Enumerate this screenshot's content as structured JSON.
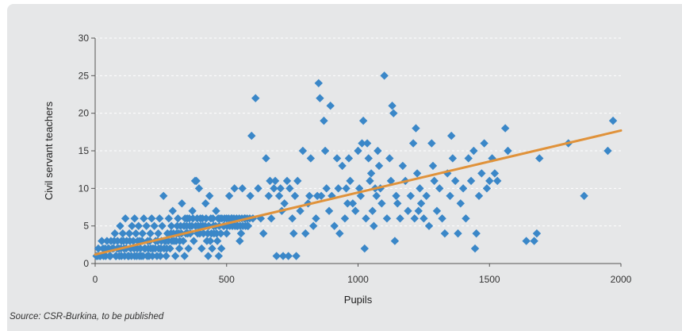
{
  "chart_data": {
    "type": "scatter",
    "title": "",
    "xlabel": "Pupils",
    "ylabel": "Civil servant teachers",
    "xlim": [
      0,
      2000
    ],
    "ylim": [
      0,
      30
    ],
    "xticks": [
      "0",
      "500",
      "1000",
      "1500",
      "2000"
    ],
    "yticks": [
      "0",
      "5",
      "10",
      "15",
      "20",
      "25",
      "30"
    ],
    "grid": "horizontal-dashed",
    "colors": {
      "points": "#3a87c8",
      "trend": "#e0923a",
      "background": "#e6e7e8"
    },
    "trendline": {
      "x": [
        0,
        2000
      ],
      "y": [
        1.2,
        17.7
      ]
    },
    "series": [
      {
        "points": [
          [
            10,
            1
          ],
          [
            20,
            1
          ],
          [
            30,
            2
          ],
          [
            40,
            1
          ],
          [
            50,
            2
          ],
          [
            55,
            1
          ],
          [
            60,
            3
          ],
          [
            70,
            2
          ],
          [
            75,
            4
          ],
          [
            80,
            1
          ],
          [
            85,
            3
          ],
          [
            90,
            2
          ],
          [
            95,
            5
          ],
          [
            100,
            1
          ],
          [
            100,
            3
          ],
          [
            105,
            4
          ],
          [
            110,
            2
          ],
          [
            115,
            6
          ],
          [
            120,
            3
          ],
          [
            125,
            1
          ],
          [
            130,
            4
          ],
          [
            135,
            2
          ],
          [
            140,
            5
          ],
          [
            145,
            3
          ],
          [
            150,
            1
          ],
          [
            150,
            6
          ],
          [
            155,
            4
          ],
          [
            160,
            2
          ],
          [
            165,
            5
          ],
          [
            170,
            3
          ],
          [
            175,
            1
          ],
          [
            180,
            4
          ],
          [
            185,
            6
          ],
          [
            190,
            2
          ],
          [
            195,
            5
          ],
          [
            200,
            3
          ],
          [
            205,
            1
          ],
          [
            210,
            4
          ],
          [
            215,
            6
          ],
          [
            220,
            2
          ],
          [
            225,
            5
          ],
          [
            230,
            3
          ],
          [
            235,
            1
          ],
          [
            240,
            4
          ],
          [
            245,
            6
          ],
          [
            250,
            2
          ],
          [
            255,
            5
          ],
          [
            260,
            9
          ],
          [
            265,
            3
          ],
          [
            270,
            1
          ],
          [
            275,
            4
          ],
          [
            280,
            6
          ],
          [
            285,
            2
          ],
          [
            290,
            5
          ],
          [
            295,
            7
          ],
          [
            300,
            3
          ],
          [
            305,
            1
          ],
          [
            310,
            4
          ],
          [
            315,
            6
          ],
          [
            320,
            2
          ],
          [
            325,
            5
          ],
          [
            330,
            8
          ],
          [
            335,
            3
          ],
          [
            340,
            1
          ],
          [
            345,
            4
          ],
          [
            350,
            6
          ],
          [
            355,
            2
          ],
          [
            360,
            5
          ],
          [
            370,
            7
          ],
          [
            375,
            3
          ],
          [
            380,
            11
          ],
          [
            385,
            11
          ],
          [
            390,
            4
          ],
          [
            395,
            10
          ],
          [
            400,
            6
          ],
          [
            405,
            2
          ],
          [
            410,
            5
          ],
          [
            420,
            8
          ],
          [
            425,
            3
          ],
          [
            430,
            1
          ],
          [
            435,
            9
          ],
          [
            440,
            6
          ],
          [
            445,
            2
          ],
          [
            450,
            5
          ],
          [
            460,
            7
          ],
          [
            465,
            3
          ],
          [
            470,
            1
          ],
          [
            475,
            6
          ],
          [
            480,
            2
          ],
          [
            490,
            5
          ],
          [
            500,
            6
          ],
          [
            500,
            4
          ],
          [
            510,
            9
          ],
          [
            520,
            6
          ],
          [
            530,
            10
          ],
          [
            540,
            5
          ],
          [
            550,
            3
          ],
          [
            555,
            4
          ],
          [
            560,
            10
          ],
          [
            570,
            6
          ],
          [
            580,
            5
          ],
          [
            590,
            9
          ],
          [
            595,
            17
          ],
          [
            600,
            6
          ],
          [
            610,
            22
          ],
          [
            620,
            10
          ],
          [
            630,
            6
          ],
          [
            640,
            4
          ],
          [
            650,
            14
          ],
          [
            660,
            9
          ],
          [
            665,
            11
          ],
          [
            670,
            6
          ],
          [
            680,
            10
          ],
          [
            685,
            11
          ],
          [
            690,
            1
          ],
          [
            700,
            9
          ],
          [
            705,
            10
          ],
          [
            710,
            7
          ],
          [
            715,
            1
          ],
          [
            720,
            8
          ],
          [
            730,
            11
          ],
          [
            735,
            1
          ],
          [
            740,
            10
          ],
          [
            750,
            6
          ],
          [
            755,
            4
          ],
          [
            760,
            9
          ],
          [
            765,
            1
          ],
          [
            770,
            11
          ],
          [
            780,
            7
          ],
          [
            790,
            15
          ],
          [
            800,
            4
          ],
          [
            810,
            8
          ],
          [
            815,
            9
          ],
          [
            820,
            14
          ],
          [
            830,
            5
          ],
          [
            840,
            6
          ],
          [
            845,
            9
          ],
          [
            850,
            24
          ],
          [
            855,
            22
          ],
          [
            860,
            9
          ],
          [
            870,
            19
          ],
          [
            875,
            15
          ],
          [
            880,
            10
          ],
          [
            890,
            7
          ],
          [
            895,
            21
          ],
          [
            900,
            9
          ],
          [
            910,
            5
          ],
          [
            920,
            14
          ],
          [
            925,
            10
          ],
          [
            930,
            4
          ],
          [
            940,
            13
          ],
          [
            950,
            6
          ],
          [
            955,
            10
          ],
          [
            960,
            8
          ],
          [
            965,
            14
          ],
          [
            970,
            11
          ],
          [
            980,
            8
          ],
          [
            990,
            7
          ],
          [
            1000,
            15
          ],
          [
            1005,
            10
          ],
          [
            1010,
            9
          ],
          [
            1015,
            16
          ],
          [
            1020,
            19
          ],
          [
            1025,
            2
          ],
          [
            1030,
            6
          ],
          [
            1035,
            16
          ],
          [
            1040,
            14
          ],
          [
            1045,
            11
          ],
          [
            1050,
            12
          ],
          [
            1055,
            7
          ],
          [
            1060,
            5
          ],
          [
            1065,
            10
          ],
          [
            1070,
            9
          ],
          [
            1075,
            15
          ],
          [
            1080,
            13
          ],
          [
            1085,
            10
          ],
          [
            1090,
            8
          ],
          [
            1100,
            25
          ],
          [
            1110,
            6
          ],
          [
            1120,
            14
          ],
          [
            1125,
            11
          ],
          [
            1130,
            21
          ],
          [
            1135,
            20
          ],
          [
            1140,
            3
          ],
          [
            1145,
            9
          ],
          [
            1150,
            8
          ],
          [
            1160,
            6
          ],
          [
            1170,
            13
          ],
          [
            1180,
            11
          ],
          [
            1190,
            7
          ],
          [
            1200,
            9
          ],
          [
            1210,
            16
          ],
          [
            1215,
            6
          ],
          [
            1220,
            18
          ],
          [
            1225,
            12
          ],
          [
            1230,
            7
          ],
          [
            1235,
            10
          ],
          [
            1240,
            8
          ],
          [
            1250,
            6
          ],
          [
            1260,
            9
          ],
          [
            1270,
            5
          ],
          [
            1280,
            16
          ],
          [
            1285,
            13
          ],
          [
            1290,
            11
          ],
          [
            1300,
            7
          ],
          [
            1310,
            10
          ],
          [
            1320,
            6
          ],
          [
            1330,
            4
          ],
          [
            1340,
            12
          ],
          [
            1350,
            9
          ],
          [
            1355,
            17
          ],
          [
            1360,
            14
          ],
          [
            1370,
            11
          ],
          [
            1380,
            4
          ],
          [
            1390,
            8
          ],
          [
            1400,
            10
          ],
          [
            1410,
            6
          ],
          [
            1420,
            14
          ],
          [
            1430,
            11
          ],
          [
            1440,
            15
          ],
          [
            1445,
            2
          ],
          [
            1450,
            4
          ],
          [
            1460,
            9
          ],
          [
            1470,
            12
          ],
          [
            1480,
            16
          ],
          [
            1490,
            10
          ],
          [
            1500,
            11
          ],
          [
            1510,
            14
          ],
          [
            1520,
            12
          ],
          [
            1530,
            11
          ],
          [
            1560,
            18
          ],
          [
            1570,
            15
          ],
          [
            1640,
            3
          ],
          [
            1670,
            3
          ],
          [
            1680,
            4
          ],
          [
            1690,
            14
          ],
          [
            1800,
            16
          ],
          [
            1860,
            9
          ],
          [
            1950,
            15
          ],
          [
            1970,
            19
          ],
          [
            5,
            1
          ],
          [
            12,
            2
          ],
          [
            18,
            1
          ],
          [
            25,
            3
          ],
          [
            32,
            1
          ],
          [
            38,
            2
          ],
          [
            45,
            3
          ],
          [
            52,
            2
          ],
          [
            58,
            1
          ],
          [
            65,
            2
          ],
          [
            72,
            3
          ],
          [
            78,
            1
          ],
          [
            84,
            2
          ],
          [
            92,
            1
          ],
          [
            98,
            2
          ],
          [
            108,
            3
          ],
          [
            112,
            1
          ],
          [
            118,
            2
          ],
          [
            128,
            1
          ],
          [
            132,
            3
          ],
          [
            138,
            1
          ],
          [
            148,
            2
          ],
          [
            158,
            1
          ],
          [
            162,
            3
          ],
          [
            168,
            1
          ],
          [
            172,
            2
          ],
          [
            178,
            3
          ],
          [
            182,
            1
          ],
          [
            188,
            2
          ],
          [
            198,
            1
          ],
          [
            202,
            2
          ],
          [
            208,
            3
          ],
          [
            212,
            2
          ],
          [
            218,
            1
          ],
          [
            228,
            2
          ],
          [
            238,
            3
          ],
          [
            242,
            2
          ],
          [
            248,
            1
          ],
          [
            252,
            3
          ],
          [
            262,
            2
          ],
          [
            268,
            3
          ],
          [
            272,
            2
          ],
          [
            278,
            3
          ],
          [
            288,
            4
          ],
          [
            292,
            3
          ],
          [
            298,
            4
          ],
          [
            308,
            3
          ],
          [
            312,
            5
          ],
          [
            318,
            4
          ],
          [
            322,
            3
          ],
          [
            328,
            4
          ],
          [
            338,
            5
          ],
          [
            342,
            6
          ],
          [
            348,
            5
          ],
          [
            352,
            4
          ],
          [
            358,
            6
          ],
          [
            362,
            4
          ],
          [
            368,
            5
          ],
          [
            372,
            6
          ],
          [
            382,
            5
          ],
          [
            388,
            6
          ],
          [
            392,
            5
          ],
          [
            398,
            4
          ],
          [
            402,
            5
          ],
          [
            408,
            6
          ],
          [
            412,
            4
          ],
          [
            418,
            5
          ],
          [
            422,
            6
          ],
          [
            428,
            4
          ],
          [
            432,
            5
          ],
          [
            438,
            3
          ],
          [
            442,
            4
          ],
          [
            448,
            6
          ],
          [
            452,
            4
          ],
          [
            458,
            5
          ],
          [
            462,
            4
          ],
          [
            468,
            6
          ],
          [
            472,
            5
          ],
          [
            478,
            4
          ],
          [
            482,
            6
          ],
          [
            488,
            5
          ],
          [
            492,
            6
          ],
          [
            502,
            5
          ],
          [
            508,
            6
          ],
          [
            512,
            5
          ],
          [
            518,
            6
          ],
          [
            522,
            5
          ],
          [
            528,
            6
          ],
          [
            532,
            5
          ],
          [
            538,
            6
          ],
          [
            542,
            5
          ],
          [
            548,
            6
          ],
          [
            552,
            5
          ],
          [
            558,
            6
          ],
          [
            562,
            5
          ],
          [
            568,
            6
          ],
          [
            572,
            5
          ],
          [
            578,
            6
          ],
          [
            582,
            5
          ],
          [
            588,
            6
          ]
        ]
      }
    ],
    "source": "Source: CSR-Burkina, to be published"
  }
}
